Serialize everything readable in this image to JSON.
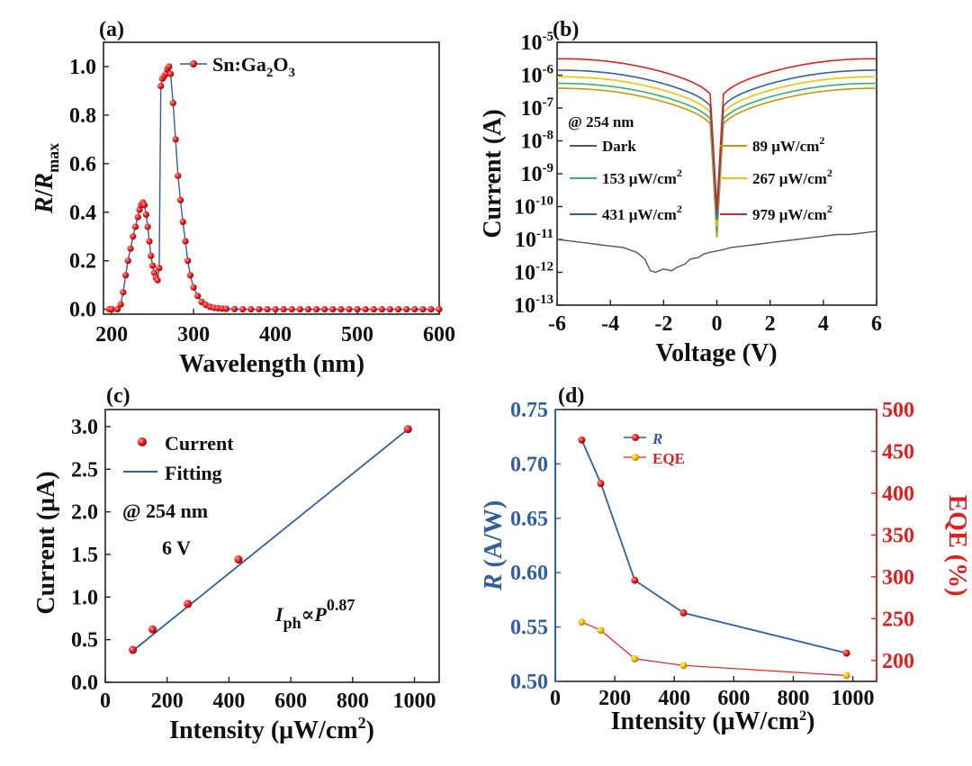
{
  "panels": {
    "a": {
      "label": "(a)"
    },
    "b": {
      "label": "(b)"
    },
    "c": {
      "label": "(c)"
    },
    "d": {
      "label": "(d)"
    }
  },
  "chart_data": [
    {
      "id": "a",
      "type": "line",
      "xlabel": "Wavelength (nm)",
      "ylabel_parts": [
        "R",
        "/",
        "R",
        "max"
      ],
      "xlim": [
        190,
        600
      ],
      "ylim": [
        -0.02,
        1.1
      ],
      "xticks": [
        200,
        300,
        400,
        500,
        600
      ],
      "yticks": [
        "0.0",
        "0.2",
        "0.4",
        "0.6",
        "0.8",
        "1.0"
      ],
      "legend_parts": [
        "Sn:Ga",
        "2",
        "O",
        "3"
      ],
      "series": [
        {
          "name": "Sn:Ga2O3",
          "color": "#e02020",
          "line_color": "#2f5f9f",
          "x": [
            197,
            200,
            207,
            211,
            214,
            217,
            220,
            223,
            226,
            229,
            232,
            234,
            236,
            238,
            240,
            242,
            244,
            246,
            248,
            250,
            252,
            254,
            256,
            258,
            260,
            262,
            264,
            266,
            268,
            270,
            272,
            275,
            278,
            281,
            284,
            287,
            290,
            293,
            296,
            300,
            305,
            310,
            315,
            320,
            325,
            330,
            335,
            340,
            350,
            360,
            370,
            380,
            390,
            400,
            410,
            420,
            430,
            440,
            450,
            460,
            470,
            480,
            490,
            500,
            510,
            520,
            530,
            540,
            550,
            560,
            570,
            580,
            590,
            600
          ],
          "y": [
            0.0,
            0.0,
            0.0,
            0.02,
            0.07,
            0.14,
            0.2,
            0.25,
            0.3,
            0.34,
            0.38,
            0.41,
            0.43,
            0.44,
            0.43,
            0.39,
            0.34,
            0.28,
            0.22,
            0.18,
            0.15,
            0.13,
            0.12,
            0.17,
            0.92,
            0.95,
            0.96,
            0.97,
            0.99,
            1.0,
            0.97,
            0.85,
            0.7,
            0.55,
            0.45,
            0.36,
            0.28,
            0.2,
            0.14,
            0.09,
            0.055,
            0.03,
            0.018,
            0.01,
            0.006,
            0.004,
            0.003,
            0.002,
            0.001,
            0.0,
            0.0,
            0.0,
            0.0,
            0.0,
            0.0,
            0.0,
            0.0,
            0.0,
            0.0,
            0.0,
            0.0,
            0.0,
            0.0,
            0.0,
            0.0,
            0.0,
            0.0,
            0.0,
            0.0,
            0.0,
            0.0,
            0.0,
            0.0,
            0.0
          ]
        }
      ]
    },
    {
      "id": "b",
      "type": "line",
      "scale_y": "log",
      "xlabel": "Voltage (V)",
      "ylabel": "Current (A)",
      "xlim": [
        -6,
        6
      ],
      "ylim_exp": [
        -13,
        -5
      ],
      "xticks": [
        "-6",
        "-4",
        "-2",
        "0",
        "2",
        "4",
        "6"
      ],
      "ytick_exponents": [
        "-5",
        "-6",
        "-7",
        "-8",
        "-9",
        "-10",
        "-11",
        "-12",
        "-13"
      ],
      "ytick_base": "10",
      "annotation": "@ 254 nm",
      "series": [
        {
          "name": "Dark",
          "color": "#555555",
          "x": [
            -6,
            -5.5,
            -5,
            -4.5,
            -4,
            -3.5,
            -3,
            -2.7,
            -2.5,
            -2.3,
            -2,
            -1.7,
            -1.5,
            -1.2,
            -1,
            -0.7,
            -0.5,
            -0.3,
            0,
            0.3,
            0.5,
            1,
            1.5,
            2,
            2.5,
            3,
            3.5,
            4,
            4.5,
            5,
            5.5,
            6
          ],
          "y_exp": [
            -11.0,
            -11.05,
            -11.1,
            -11.15,
            -11.2,
            -11.25,
            -11.4,
            -11.6,
            -11.95,
            -12.0,
            -11.9,
            -11.95,
            -11.85,
            -11.75,
            -11.6,
            -11.55,
            -11.45,
            -11.4,
            -11.35,
            -11.3,
            -11.25,
            -11.2,
            -11.15,
            -11.1,
            -11.05,
            -11.0,
            -10.95,
            -10.9,
            -10.85,
            -10.85,
            -10.8,
            -10.75
          ]
        },
        {
          "name": "89 μW/cm²",
          "label_main": "89 μW/cm",
          "label_sup": "2",
          "color": "#c8960c",
          "peak_exp": -6.4
        },
        {
          "name": "153 μW/cm²",
          "label_main": "153 μW/cm",
          "label_sup": "2",
          "color": "#33b36a",
          "peak_exp": -6.25
        },
        {
          "name": "267 μW/cm²",
          "label_main": "267 μW/cm",
          "label_sup": "2",
          "color": "#f2c200",
          "peak_exp": -6.05
        },
        {
          "name": "431 μW/cm²",
          "label_main": "431 μW/cm",
          "label_sup": "2",
          "color": "#2f5f9f",
          "peak_exp": -5.85
        },
        {
          "name": "979 μW/cm²",
          "label_main": "979 μW/cm",
          "label_sup": "2",
          "color": "#e02020",
          "peak_exp": -5.5
        }
      ]
    },
    {
      "id": "c",
      "type": "scatter",
      "xlabel_main": "Intensity (μW/cm",
      "xlabel_sup": "2",
      "xlabel_end": ")",
      "ylabel": "Current (μA)",
      "xlim": [
        0,
        1080
      ],
      "ylim": [
        0,
        3.2
      ],
      "xticks": [
        0,
        200,
        400,
        600,
        800,
        1000
      ],
      "yticks": [
        "0.0",
        "0.5",
        "1.0",
        "1.5",
        "2.0",
        "2.5",
        "3.0"
      ],
      "series": [
        {
          "name": "Current",
          "color": "#e02020",
          "x": [
            89,
            153,
            267,
            431,
            979
          ],
          "y": [
            0.38,
            0.62,
            0.92,
            1.44,
            2.97
          ]
        },
        {
          "name": "Fitting",
          "color": "#2f5f9f",
          "x": [
            89,
            979
          ],
          "y": [
            0.37,
            2.97
          ]
        }
      ],
      "annotations": [
        "@ 254 nm",
        "6 V"
      ],
      "equation": {
        "lhs": "I",
        "lhs_sub": "ph",
        "rel": "∝",
        "rhs": "P",
        "rhs_sup": "0.87"
      }
    },
    {
      "id": "d",
      "type": "line",
      "xlabel_main": "Intensity (μW/cm",
      "xlabel_sup": "2",
      "xlabel_end": ")",
      "ylabel_left_italic": "R",
      "ylabel_left_rest": " (A/W)",
      "ylabel_right": "EQE (%)",
      "xlim": [
        0,
        1080
      ],
      "ylim_left": [
        0.5,
        0.75
      ],
      "ylim_right": [
        175,
        500
      ],
      "xticks": [
        0,
        200,
        400,
        600,
        800,
        1000
      ],
      "yticks_left": [
        "0.50",
        "0.55",
        "0.60",
        "0.65",
        "0.70",
        "0.75"
      ],
      "yticks_right": [
        "200",
        "250",
        "300",
        "350",
        "400",
        "450",
        "500"
      ],
      "left_axis_color": "#2f5f9f",
      "right_axis_color": "#e02020",
      "series": [
        {
          "name": "R",
          "axis": "left",
          "color": "#2f5f9f",
          "marker_color": "#e02020",
          "x": [
            89,
            153,
            267,
            431,
            979
          ],
          "y": [
            0.722,
            0.682,
            0.593,
            0.563,
            0.526
          ]
        },
        {
          "name": "EQE",
          "axis": "right",
          "color": "#e02020",
          "marker_color": "#f2c200",
          "x": [
            89,
            153,
            267,
            431,
            979
          ],
          "y": [
            246,
            236,
            202,
            194,
            182
          ]
        }
      ]
    }
  ]
}
